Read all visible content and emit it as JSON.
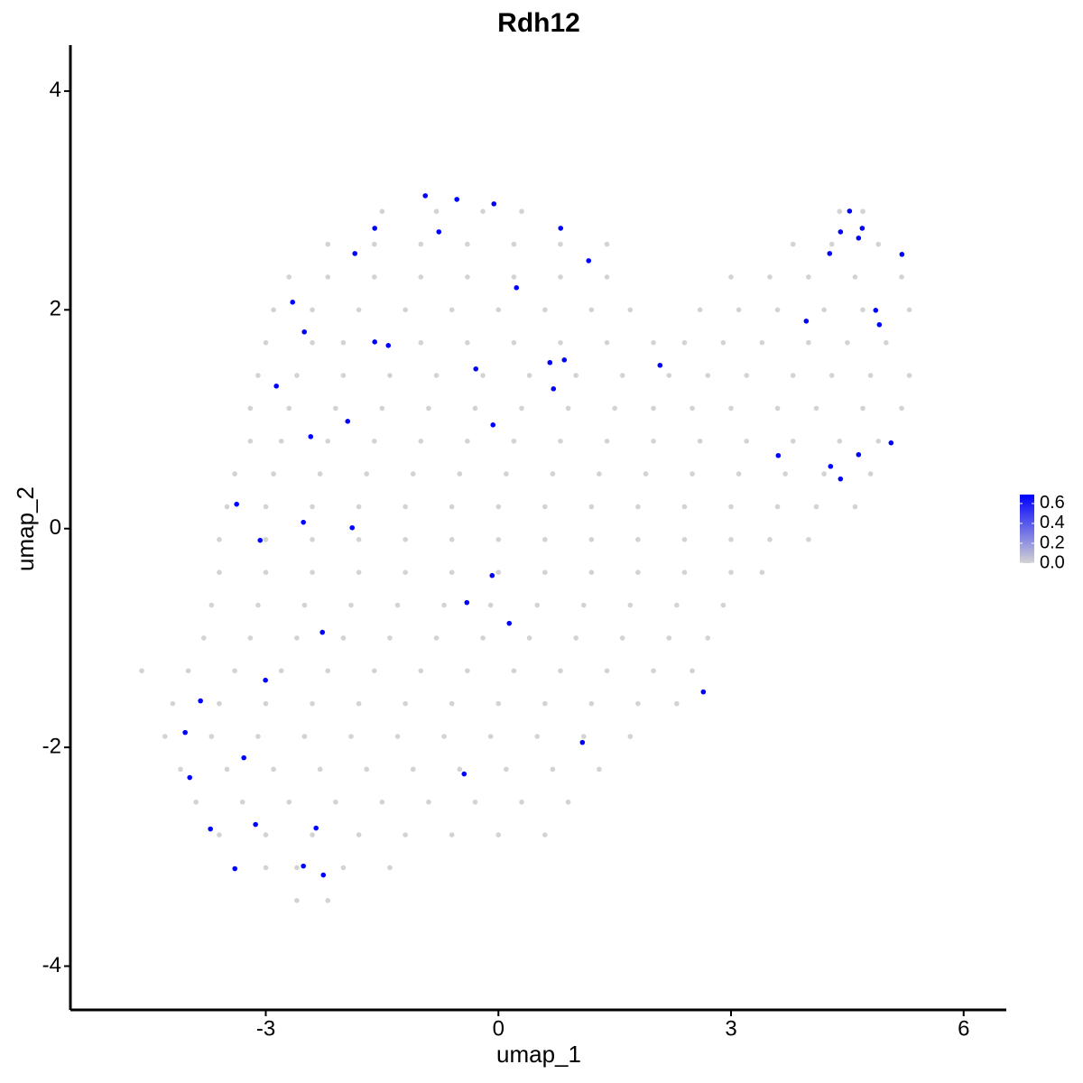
{
  "chart_data": {
    "type": "scatter",
    "title": "Rdh12",
    "xlabel": "umap_1",
    "ylabel": "umap_2",
    "x": [
      -1.5,
      -0.8,
      -0.2,
      0.3,
      4.4,
      4.7,
      -2.2,
      -1.6,
      -1,
      -0.4,
      0.2,
      0.8,
      1.4,
      3.8,
      4.3,
      4.9,
      -2.7,
      -2.2,
      -1.6,
      -1.0,
      -0.4,
      0.2,
      0.8,
      1.4,
      3.0,
      3.5,
      4.0,
      4.6,
      5.2,
      -2.9,
      -2.4,
      -1.8,
      -1.2,
      -0.6,
      0,
      0.6,
      1.2,
      1.7,
      2.6,
      3.1,
      3.6,
      4.2,
      4.7,
      5.3,
      -3.0,
      -2.4,
      -2.0,
      -1.0,
      -0.4,
      0.2,
      0.8,
      1.4,
      2.0,
      2.4,
      2.9,
      3.4,
      4.0,
      4.5,
      5.0,
      -3.1,
      -2.6,
      -2.0,
      -1.4,
      -0.8,
      -0.2,
      0.4,
      1.0,
      1.6,
      2.2,
      2.7,
      3.2,
      3.8,
      4.3,
      4.8,
      5.3,
      -3.2,
      -2.7,
      -2.1,
      -1.5,
      -0.9,
      -0.3,
      0.3,
      0.9,
      1.5,
      2.0,
      2.5,
      3.0,
      3.6,
      4.1,
      4.7,
      5.2,
      -3.2,
      -2.8,
      -2.2,
      -1.6,
      -1.0,
      -0.4,
      0.2,
      0.8,
      1.4,
      2.0,
      2.6,
      3.2,
      3.8,
      4.4,
      4.9,
      -3.4,
      -2.9,
      -2.3,
      -1.7,
      -1.1,
      -0.5,
      0.1,
      0.7,
      1.3,
      1.9,
      2.5,
      3.1,
      3.7,
      4.2,
      4.8,
      -3.5,
      -3.0,
      -2.4,
      -1.8,
      -1.2,
      -0.6,
      0,
      0.6,
      1.2,
      1.8,
      2.4,
      3.0,
      3.6,
      4.1,
      4.6,
      -3.6,
      -3.0,
      -2.4,
      -1.8,
      -1.2,
      -0.6,
      0,
      0.6,
      1.2,
      1.8,
      2.4,
      3.0,
      3.5,
      4.0,
      -3.6,
      -3.0,
      -2.4,
      -1.8,
      -1.2,
      -0.6,
      0,
      0.6,
      1.2,
      1.8,
      2.4,
      3.0,
      3.4,
      -3.7,
      -3.1,
      -2.5,
      -1.9,
      -1.3,
      -0.7,
      -0.1,
      0.5,
      1.1,
      1.7,
      2.3,
      2.9,
      -3.8,
      -3.2,
      -2.6,
      -2.0,
      -1.4,
      -0.8,
      -0.2,
      0.4,
      1.0,
      1.6,
      2.2,
      2.7,
      -4.6,
      -4.0,
      -3.4,
      -2.8,
      -2.2,
      -1.6,
      -1.0,
      -0.4,
      0.2,
      0.8,
      1.4,
      2.0,
      2.5,
      -4.2,
      -3.6,
      -3.0,
      -2.4,
      -1.8,
      -1.2,
      -0.6,
      0,
      0.6,
      1.2,
      1.8,
      2.3,
      -4.3,
      -3.7,
      -3.1,
      -2.5,
      -1.9,
      -1.3,
      -0.7,
      -0.1,
      0.5,
      1.1,
      1.7,
      -4.1,
      -3.5,
      -2.9,
      -2.3,
      -1.7,
      -1.1,
      -0.5,
      0.1,
      0.7,
      1.3,
      -3.9,
      -3.3,
      -2.7,
      -2.1,
      -1.5,
      -0.9,
      -0.3,
      0.3,
      0.9,
      -3.6,
      -3.0,
      -2.4,
      -1.8,
      -1.2,
      -0.6,
      0,
      0.6,
      -3.0,
      -2.6,
      -2.0,
      -1.4,
      -2.6,
      -2.2,
      -0.943,
      -0.536,
      -0.058,
      -1.595,
      -0.768,
      0.803,
      -1.851,
      1.164,
      0.233,
      -2.654,
      -2.503,
      -1.595,
      -1.42,
      -0.291,
      0.664,
      0.85,
      2.084,
      0.71,
      -2.864,
      -1.944,
      -0.07,
      -2.421,
      4.529,
      4.412,
      4.692,
      4.645,
      4.272,
      5.204,
      3.97,
      4.866,
      4.913,
      3.609,
      4.284,
      4.645,
      4.412,
      5.064,
      -3.376,
      -3.073,
      -2.515,
      -1.886,
      -0.081,
      -0.407,
      0.14,
      -2.27,
      -3.004,
      -3.842,
      -4.04,
      -3.283,
      -3.981,
      1.083,
      -0.442,
      2.643,
      -3.714,
      -3.132,
      -2.352,
      -3.399,
      -2.515,
      -2.258
    ],
    "y": [
      2.9,
      2.9,
      2.9,
      2.9,
      2.9,
      2.9,
      2.6,
      2.6,
      2.6,
      2.6,
      2.6,
      2.6,
      2.6,
      2.6,
      2.6,
      2.6,
      2.3,
      2.3,
      2.3,
      2.3,
      2.3,
      2.3,
      2.3,
      2.3,
      2.3,
      2.3,
      2.3,
      2.3,
      2.3,
      2.0,
      2.0,
      2.0,
      2.0,
      2.0,
      2.0,
      2.0,
      2.0,
      2.0,
      2.0,
      2.0,
      2.0,
      2.0,
      2.0,
      2.0,
      1.7,
      1.7,
      1.7,
      1.7,
      1.7,
      1.7,
      1.7,
      1.7,
      1.7,
      1.7,
      1.7,
      1.7,
      1.7,
      1.7,
      1.7,
      1.4,
      1.4,
      1.4,
      1.4,
      1.4,
      1.4,
      1.4,
      1.4,
      1.4,
      1.4,
      1.4,
      1.4,
      1.4,
      1.4,
      1.4,
      1.4,
      1.1,
      1.1,
      1.1,
      1.1,
      1.1,
      1.1,
      1.1,
      1.1,
      1.1,
      1.1,
      1.1,
      1.1,
      1.1,
      1.1,
      1.1,
      1.1,
      0.8,
      0.8,
      0.8,
      0.8,
      0.8,
      0.8,
      0.8,
      0.8,
      0.8,
      0.8,
      0.8,
      0.8,
      0.8,
      0.8,
      0.8,
      0.5,
      0.5,
      0.5,
      0.5,
      0.5,
      0.5,
      0.5,
      0.5,
      0.5,
      0.5,
      0.5,
      0.5,
      0.5,
      0.5,
      0.5,
      0.2,
      0.2,
      0.2,
      0.2,
      0.2,
      0.2,
      0.2,
      0.2,
      0.2,
      0.2,
      0.2,
      0.2,
      0.2,
      0.2,
      0.2,
      -0.1,
      -0.1,
      -0.1,
      -0.1,
      -0.1,
      -0.1,
      -0.1,
      -0.1,
      -0.1,
      -0.1,
      -0.1,
      -0.1,
      -0.1,
      -0.1,
      -0.4,
      -0.4,
      -0.4,
      -0.4,
      -0.4,
      -0.4,
      -0.4,
      -0.4,
      -0.4,
      -0.4,
      -0.4,
      -0.4,
      -0.4,
      -0.7,
      -0.7,
      -0.7,
      -0.7,
      -0.7,
      -0.7,
      -0.7,
      -0.7,
      -0.7,
      -0.7,
      -0.7,
      -0.7,
      -1.0,
      -1.0,
      -1.0,
      -1.0,
      -1.0,
      -1.0,
      -1.0,
      -1.0,
      -1.0,
      -1.0,
      -1.0,
      -1.0,
      -1.3,
      -1.3,
      -1.3,
      -1.3,
      -1.3,
      -1.3,
      -1.3,
      -1.3,
      -1.3,
      -1.3,
      -1.3,
      -1.3,
      -1.3,
      -1.6,
      -1.6,
      -1.6,
      -1.6,
      -1.6,
      -1.6,
      -1.6,
      -1.6,
      -1.6,
      -1.6,
      -1.6,
      -1.6,
      -1.9,
      -1.9,
      -1.9,
      -1.9,
      -1.9,
      -1.9,
      -1.9,
      -1.9,
      -1.9,
      -1.9,
      -1.9,
      -2.2,
      -2.2,
      -2.2,
      -2.2,
      -2.2,
      -2.2,
      -2.2,
      -2.2,
      -2.2,
      -2.2,
      -2.5,
      -2.5,
      -2.5,
      -2.5,
      -2.5,
      -2.5,
      -2.5,
      -2.5,
      -2.5,
      -2.8,
      -2.8,
      -2.8,
      -2.8,
      -2.8,
      -2.8,
      -2.8,
      -2.8,
      -3.1,
      -3.1,
      -3.1,
      -3.1,
      -3.4,
      -3.4,
      3.043,
      3.01,
      2.969,
      2.746,
      2.713,
      2.746,
      2.515,
      2.449,
      2.202,
      2.07,
      1.798,
      1.707,
      1.674,
      1.46,
      1.518,
      1.542,
      1.493,
      1.278,
      1.303,
      0.981,
      0.948,
      0.841,
      2.903,
      2.713,
      2.746,
      2.656,
      2.515,
      2.507,
      1.897,
      1.996,
      1.864,
      0.668,
      0.569,
      0.676,
      0.454,
      0.784,
      0.223,
      -0.107,
      0.058,
      0.008,
      -0.429,
      -0.676,
      -0.866,
      -0.948,
      -1.386,
      -1.575,
      -1.864,
      -2.095,
      -2.276,
      -1.955,
      -2.243,
      -1.493,
      -2.746,
      -2.705,
      -2.738,
      -3.109,
      -3.085,
      -3.167
    ],
    "values": [
      0,
      0,
      0,
      0,
      0,
      0,
      0,
      0,
      0,
      0,
      0,
      0,
      0,
      0,
      0,
      0,
      0,
      0,
      0,
      0,
      0,
      0,
      0,
      0,
      0,
      0,
      0,
      0,
      0,
      0,
      0,
      0,
      0,
      0,
      0,
      0,
      0,
      0,
      0,
      0,
      0,
      0,
      0,
      0,
      0,
      0,
      0,
      0,
      0,
      0,
      0,
      0,
      0,
      0,
      0,
      0,
      0,
      0,
      0,
      0,
      0,
      0,
      0,
      0,
      0,
      0,
      0,
      0,
      0,
      0,
      0,
      0,
      0,
      0,
      0,
      0,
      0,
      0,
      0,
      0,
      0,
      0,
      0,
      0,
      0,
      0,
      0,
      0,
      0,
      0,
      0,
      0,
      0,
      0,
      0,
      0,
      0,
      0,
      0,
      0,
      0,
      0,
      0,
      0,
      0,
      0,
      0,
      0,
      0,
      0,
      0,
      0,
      0,
      0,
      0,
      0,
      0,
      0,
      0,
      0,
      0,
      0,
      0,
      0,
      0,
      0,
      0,
      0,
      0,
      0,
      0,
      0,
      0,
      0,
      0,
      0,
      0,
      0,
      0,
      0,
      0,
      0,
      0,
      0,
      0,
      0,
      0,
      0,
      0,
      0,
      0,
      0,
      0,
      0,
      0,
      0,
      0,
      0,
      0,
      0,
      0,
      0,
      0,
      0,
      0,
      0,
      0,
      0,
      0,
      0,
      0,
      0,
      0,
      0,
      0,
      0,
      0,
      0,
      0,
      0,
      0,
      0,
      0,
      0,
      0,
      0,
      0,
      0,
      0,
      0,
      0,
      0,
      0,
      0,
      0,
      0,
      0,
      0,
      0,
      0,
      0,
      0,
      0,
      0,
      0,
      0,
      0,
      0,
      0,
      0,
      0,
      0,
      0,
      0,
      0,
      0,
      0,
      0,
      0,
      0,
      0,
      0,
      0,
      0,
      0,
      0,
      0,
      0,
      0,
      0,
      0,
      0,
      0,
      0,
      0,
      0,
      0,
      0,
      0,
      0,
      0,
      0,
      0,
      0,
      0,
      0,
      0,
      0,
      0,
      0,
      0,
      0,
      0,
      0,
      0,
      0,
      0.69,
      0.69,
      0.69,
      0.69,
      0.69,
      0.69,
      0.69,
      0.69,
      0.69,
      0.69,
      0.69,
      0.69,
      0.69,
      0.69,
      0.69,
      0.69,
      0.69,
      0.69,
      0.69,
      0.69,
      0.69,
      0.69,
      0.69,
      0.69,
      0.69,
      0.69,
      0.69,
      0.69,
      0.69,
      0.69,
      0.69,
      0.69,
      0.69,
      0.69,
      0.69,
      0.69,
      0.69,
      0.69,
      0.69,
      0.69,
      0.69,
      0.69,
      0.69,
      0.69,
      0.69,
      0.69,
      0.69,
      0.69,
      0.69,
      0.69,
      0.69,
      0.69,
      0.69,
      0.69,
      0.69,
      0.69,
      0.69,
      0.69
    ],
    "xlim": [
      -5.52,
      6.55
    ],
    "ylim": [
      -4.4,
      4.42
    ],
    "xticks": [
      -3,
      0,
      3,
      6
    ],
    "yticks": [
      -4,
      -2,
      0,
      2,
      4
    ],
    "colorbar": {
      "low_color": "#d3d3d3",
      "high_color": "#0000ff",
      "lim": [
        0,
        0.69
      ],
      "ticks": [
        {
          "value": 0,
          "label": "0.0"
        },
        {
          "value": 0.2,
          "label": "0.2"
        },
        {
          "value": 0.4,
          "label": "0.4"
        },
        {
          "value": 0.6,
          "label": "0.6"
        }
      ]
    }
  }
}
